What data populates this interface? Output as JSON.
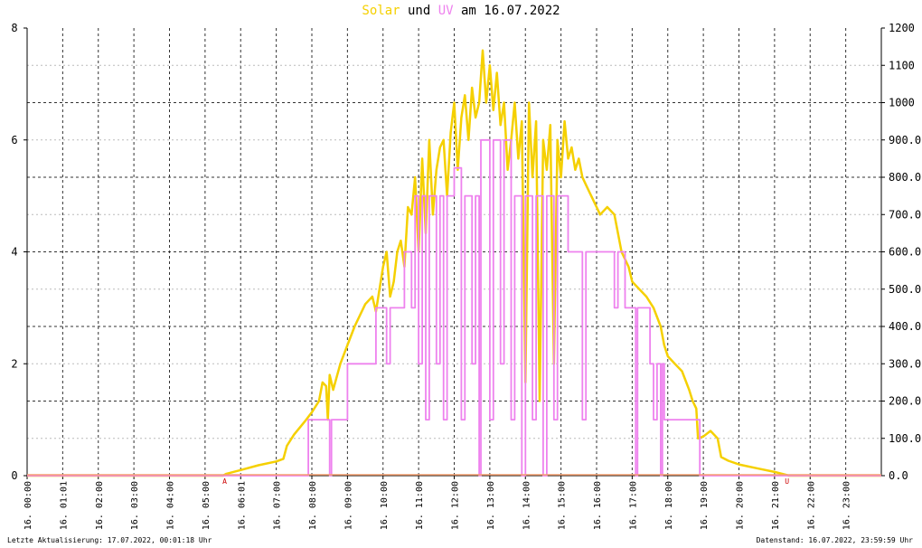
{
  "title": {
    "part1": "Solar",
    "part2": " und ",
    "part3": "UV",
    "part4": " am 16.07.2022",
    "color_solar": "#f5d000",
    "color_uv": "#ee82ee"
  },
  "footer": {
    "left": "Letzte Aktualisierung: 17.07.2022, 00:01:18 Uhr",
    "right": "Datenstand: 16.07.2022, 23:59:59 Uhr"
  },
  "chart_data": {
    "type": "line",
    "title": "Solar und UV am 16.07.2022",
    "x_tick_labels": [
      "16. 00:00",
      "16. 01:01",
      "16. 02:00",
      "16. 03:00",
      "16. 04:00",
      "16. 05:00",
      "16. 06:01",
      "16. 07:00",
      "16. 08:00",
      "16. 09:00",
      "16. 10:00",
      "16. 11:00",
      "16. 12:00",
      "16. 13:00",
      "16. 14:00",
      "16. 15:00",
      "16. 16:00",
      "16. 17:00",
      "16. 18:00",
      "16. 19:00",
      "16. 20:00",
      "16. 21:00",
      "16. 22:00",
      "16. 23:00"
    ],
    "x_range_hours": [
      0,
      24
    ],
    "y_left": {
      "range": [
        0,
        8
      ],
      "ticks": [
        "0",
        "2",
        "4",
        "6",
        "8"
      ]
    },
    "y_right": {
      "range": [
        0,
        1200
      ],
      "ticks": [
        "0.0",
        "100.0",
        "200.0",
        "300.0",
        "400.0",
        "500.0",
        "600.0",
        "700.0",
        "800.0",
        "900.0",
        "1000",
        "1100",
        "1200"
      ]
    },
    "markers": [
      {
        "label": "A",
        "hour": 5.55,
        "color": "#cc0000"
      },
      {
        "label": "U",
        "hour": 21.35,
        "color": "#cc0000"
      }
    ],
    "grid": true,
    "series": [
      {
        "name": "Solar",
        "axis": "right",
        "color": "#f5d000",
        "points": [
          [
            0,
            0
          ],
          [
            5.5,
            0
          ],
          [
            5.6,
            5
          ],
          [
            6.0,
            15
          ],
          [
            6.5,
            28
          ],
          [
            7.0,
            38
          ],
          [
            7.2,
            45
          ],
          [
            7.3,
            80
          ],
          [
            7.5,
            110
          ],
          [
            7.8,
            145
          ],
          [
            8.0,
            170
          ],
          [
            8.2,
            200
          ],
          [
            8.3,
            250
          ],
          [
            8.4,
            240
          ],
          [
            8.45,
            150
          ],
          [
            8.5,
            270
          ],
          [
            8.6,
            230
          ],
          [
            8.8,
            300
          ],
          [
            9.0,
            350
          ],
          [
            9.2,
            400
          ],
          [
            9.5,
            460
          ],
          [
            9.7,
            480
          ],
          [
            9.8,
            440
          ],
          [
            10.0,
            560
          ],
          [
            10.1,
            600
          ],
          [
            10.2,
            480
          ],
          [
            10.3,
            520
          ],
          [
            10.4,
            600
          ],
          [
            10.5,
            630
          ],
          [
            10.6,
            560
          ],
          [
            10.7,
            720
          ],
          [
            10.8,
            700
          ],
          [
            10.9,
            800
          ],
          [
            11.0,
            600
          ],
          [
            11.1,
            850
          ],
          [
            11.2,
            650
          ],
          [
            11.3,
            900
          ],
          [
            11.4,
            700
          ],
          [
            11.5,
            820
          ],
          [
            11.6,
            880
          ],
          [
            11.7,
            900
          ],
          [
            11.8,
            750
          ],
          [
            11.9,
            920
          ],
          [
            12.0,
            1000
          ],
          [
            12.1,
            820
          ],
          [
            12.2,
            960
          ],
          [
            12.3,
            1020
          ],
          [
            12.4,
            900
          ],
          [
            12.5,
            1040
          ],
          [
            12.6,
            960
          ],
          [
            12.7,
            1000
          ],
          [
            12.8,
            1140
          ],
          [
            12.9,
            1000
          ],
          [
            13.0,
            1100
          ],
          [
            13.1,
            980
          ],
          [
            13.2,
            1080
          ],
          [
            13.3,
            940
          ],
          [
            13.4,
            1000
          ],
          [
            13.5,
            820
          ],
          [
            13.6,
            900
          ],
          [
            13.7,
            1000
          ],
          [
            13.8,
            850
          ],
          [
            13.9,
            950
          ],
          [
            14.0,
            250
          ],
          [
            14.1,
            1000
          ],
          [
            14.2,
            800
          ],
          [
            14.3,
            950
          ],
          [
            14.4,
            200
          ],
          [
            14.5,
            900
          ],
          [
            14.6,
            820
          ],
          [
            14.7,
            940
          ],
          [
            14.8,
            300
          ],
          [
            14.9,
            900
          ],
          [
            15.0,
            800
          ],
          [
            15.1,
            950
          ],
          [
            15.2,
            850
          ],
          [
            15.3,
            880
          ],
          [
            15.4,
            820
          ],
          [
            15.5,
            850
          ],
          [
            15.6,
            800
          ],
          [
            15.7,
            780
          ],
          [
            15.8,
            760
          ],
          [
            15.9,
            740
          ],
          [
            16.0,
            720
          ],
          [
            16.1,
            700
          ],
          [
            16.3,
            720
          ],
          [
            16.5,
            700
          ],
          [
            16.7,
            600
          ],
          [
            16.9,
            560
          ],
          [
            17.0,
            520
          ],
          [
            17.2,
            500
          ],
          [
            17.4,
            480
          ],
          [
            17.6,
            450
          ],
          [
            17.8,
            400
          ],
          [
            17.9,
            350
          ],
          [
            18.0,
            320
          ],
          [
            18.2,
            300
          ],
          [
            18.4,
            280
          ],
          [
            18.6,
            230
          ],
          [
            18.7,
            200
          ],
          [
            18.8,
            180
          ],
          [
            18.85,
            100
          ],
          [
            19.0,
            105
          ],
          [
            19.2,
            120
          ],
          [
            19.4,
            100
          ],
          [
            19.5,
            50
          ],
          [
            19.7,
            40
          ],
          [
            20.0,
            30
          ],
          [
            20.5,
            20
          ],
          [
            21.0,
            10
          ],
          [
            21.3,
            3
          ],
          [
            21.4,
            0
          ],
          [
            24,
            0
          ]
        ]
      },
      {
        "name": "UV",
        "axis": "left",
        "color": "#ee82ee",
        "points": [
          [
            0,
            0
          ],
          [
            7.9,
            0
          ],
          [
            7.9,
            1
          ],
          [
            8.5,
            1
          ],
          [
            8.5,
            0
          ],
          [
            8.55,
            0
          ],
          [
            8.55,
            1
          ],
          [
            9.0,
            1
          ],
          [
            9.0,
            2
          ],
          [
            9.8,
            2
          ],
          [
            9.8,
            3
          ],
          [
            10.1,
            3
          ],
          [
            10.1,
            2
          ],
          [
            10.2,
            2
          ],
          [
            10.2,
            3
          ],
          [
            10.6,
            3
          ],
          [
            10.6,
            4
          ],
          [
            10.8,
            4
          ],
          [
            10.8,
            3
          ],
          [
            10.9,
            3
          ],
          [
            10.9,
            5
          ],
          [
            11.0,
            5
          ],
          [
            11.0,
            2
          ],
          [
            11.1,
            2
          ],
          [
            11.1,
            5
          ],
          [
            11.2,
            5
          ],
          [
            11.2,
            1
          ],
          [
            11.3,
            1
          ],
          [
            11.3,
            5
          ],
          [
            11.5,
            5
          ],
          [
            11.5,
            2
          ],
          [
            11.6,
            2
          ],
          [
            11.6,
            5
          ],
          [
            11.7,
            5
          ],
          [
            11.7,
            1
          ],
          [
            11.8,
            1
          ],
          [
            11.8,
            5
          ],
          [
            12.0,
            5
          ],
          [
            12.0,
            5.5
          ],
          [
            12.2,
            5.5
          ],
          [
            12.2,
            1
          ],
          [
            12.3,
            1
          ],
          [
            12.3,
            5
          ],
          [
            12.5,
            5
          ],
          [
            12.5,
            2
          ],
          [
            12.6,
            2
          ],
          [
            12.6,
            5
          ],
          [
            12.7,
            5
          ],
          [
            12.7,
            0
          ],
          [
            12.75,
            0
          ],
          [
            12.75,
            6
          ],
          [
            13.0,
            6
          ],
          [
            13.0,
            1
          ],
          [
            13.1,
            1
          ],
          [
            13.1,
            6
          ],
          [
            13.3,
            6
          ],
          [
            13.3,
            2
          ],
          [
            13.4,
            2
          ],
          [
            13.4,
            6
          ],
          [
            13.6,
            6
          ],
          [
            13.6,
            1
          ],
          [
            13.7,
            1
          ],
          [
            13.7,
            5
          ],
          [
            13.9,
            5
          ],
          [
            13.9,
            0
          ],
          [
            14.0,
            0
          ],
          [
            14.0,
            5
          ],
          [
            14.2,
            5
          ],
          [
            14.2,
            1
          ],
          [
            14.3,
            1
          ],
          [
            14.3,
            5
          ],
          [
            14.5,
            5
          ],
          [
            14.5,
            0
          ],
          [
            14.6,
            0
          ],
          [
            14.6,
            5
          ],
          [
            14.8,
            5
          ],
          [
            14.8,
            1
          ],
          [
            14.9,
            1
          ],
          [
            14.9,
            5
          ],
          [
            15.2,
            5
          ],
          [
            15.2,
            4
          ],
          [
            15.6,
            4
          ],
          [
            15.6,
            1
          ],
          [
            15.7,
            1
          ],
          [
            15.7,
            4
          ],
          [
            16.5,
            4
          ],
          [
            16.5,
            3
          ],
          [
            16.6,
            3
          ],
          [
            16.6,
            4
          ],
          [
            16.8,
            4
          ],
          [
            16.8,
            3
          ],
          [
            17.1,
            3
          ],
          [
            17.1,
            0
          ],
          [
            17.15,
            0
          ],
          [
            17.15,
            3
          ],
          [
            17.5,
            3
          ],
          [
            17.5,
            2
          ],
          [
            17.6,
            2
          ],
          [
            17.6,
            1
          ],
          [
            17.7,
            1
          ],
          [
            17.7,
            2
          ],
          [
            17.8,
            2
          ],
          [
            17.8,
            0
          ],
          [
            17.85,
            0
          ],
          [
            17.85,
            2
          ],
          [
            17.9,
            2
          ],
          [
            17.9,
            1
          ],
          [
            18.9,
            1
          ],
          [
            18.9,
            0
          ],
          [
            24,
            0
          ]
        ]
      }
    ]
  }
}
